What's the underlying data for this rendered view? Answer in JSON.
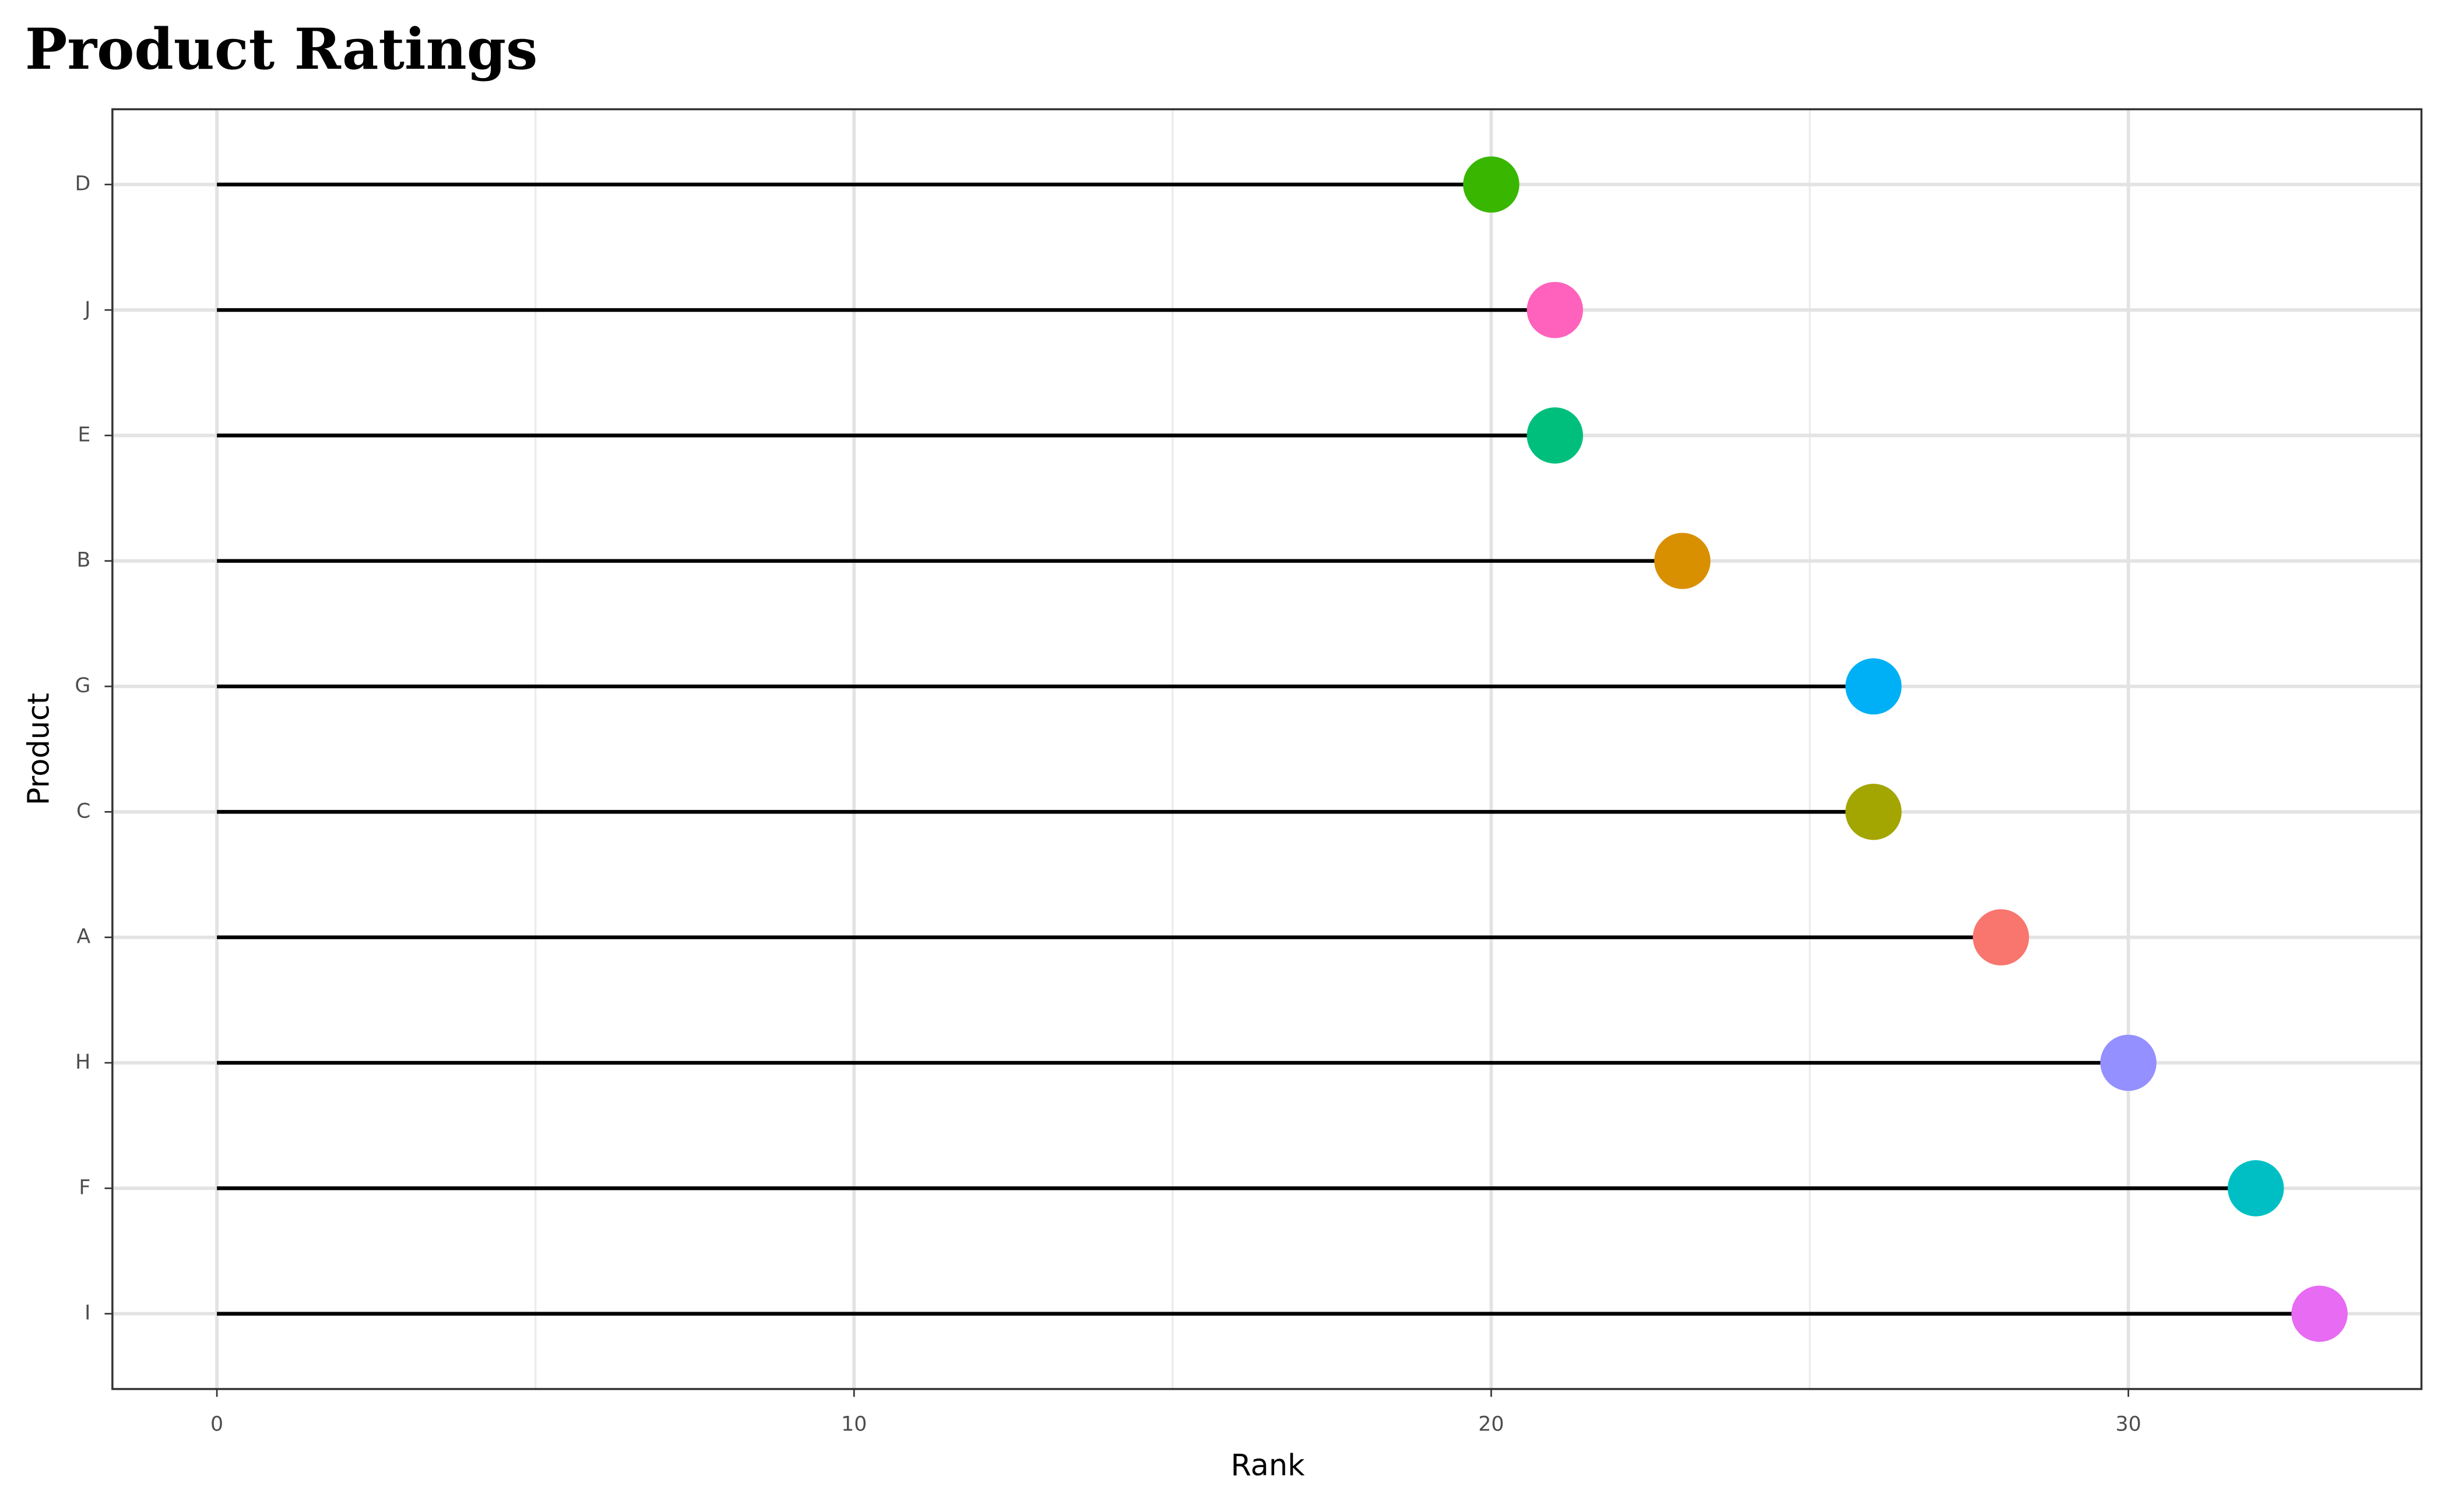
{
  "chart_data": {
    "type": "lollipop",
    "title": "Product Ratings",
    "x_label": "Rank",
    "y_label": "Product",
    "categories": [
      "D",
      "J",
      "E",
      "B",
      "G",
      "C",
      "A",
      "H",
      "F",
      "I"
    ],
    "values": [
      20,
      21,
      21,
      23,
      26,
      26,
      28,
      30,
      32,
      33
    ],
    "colors": [
      "#39b600",
      "#ff62bc",
      "#00bf7d",
      "#d89000",
      "#00b0f6",
      "#a3a500",
      "#f8766d",
      "#9590ff",
      "#00bfc4",
      "#e76bf3"
    ],
    "xlim": [
      -1.64,
      34.6
    ],
    "xticks": [
      0,
      10,
      20,
      30
    ],
    "x_minor_ticks": [
      5,
      15,
      25
    ],
    "grid": true
  }
}
